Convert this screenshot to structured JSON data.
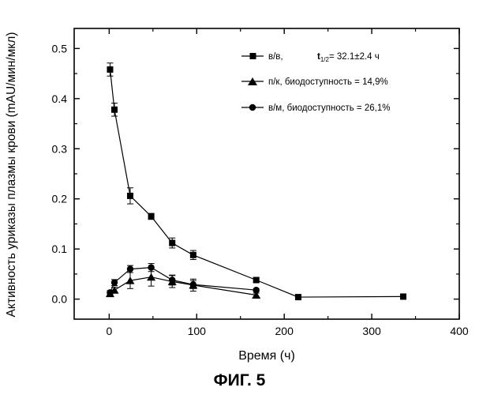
{
  "figure_caption": "ФИГ. 5",
  "chart_data": {
    "type": "scatter",
    "title": "",
    "xlabel": "Время (ч)",
    "ylabel": "Активность уриказы плазмы крови (mAU/мин/мкл)",
    "xlim": [
      -40,
      400
    ],
    "ylim": [
      -0.04,
      0.54
    ],
    "xticks": [
      0,
      100,
      200,
      300,
      400
    ],
    "yticks": [
      0.0,
      0.1,
      0.2,
      0.3,
      0.4,
      0.5
    ],
    "xtick_labels": [
      "0",
      "100",
      "200",
      "300",
      "400"
    ],
    "ytick_labels": [
      "0.0",
      "0.1",
      "0.2",
      "0.3",
      "0.4",
      "0.5"
    ],
    "grid": false,
    "legend_position": "top-right",
    "series": [
      {
        "name": "в/в",
        "legend_label": "в/в,",
        "legend_formula": "t1/2= 32.1±2.4 ч",
        "legend_t": "t",
        "legend_sub": "1/2",
        "legend_value": "= 32.1±2.4  ч",
        "marker": "square",
        "x": [
          1,
          6,
          24,
          48,
          72,
          96,
          168,
          216,
          336
        ],
        "y": [
          0.458,
          0.378,
          0.206,
          0.165,
          0.112,
          0.088,
          0.038,
          0.004,
          0.005
        ],
        "err": [
          0.013,
          0.013,
          0.016,
          0.006,
          0.01,
          0.009,
          0.004,
          0.002,
          0.002
        ]
      },
      {
        "name": "п/к",
        "legend_label": "п/к, биодоступность = 14,9%",
        "marker": "triangle",
        "x": [
          1,
          6,
          24,
          48,
          72,
          96,
          168
        ],
        "y": [
          0.011,
          0.018,
          0.037,
          0.044,
          0.035,
          0.028,
          0.008
        ],
        "err": [
          0.004,
          0.006,
          0.016,
          0.018,
          0.012,
          0.012,
          0.004
        ]
      },
      {
        "name": "в/м",
        "legend_label": "в/м, биодоступность = 26,1%",
        "marker": "circle",
        "x": [
          1,
          6,
          24,
          48,
          72,
          96,
          168
        ],
        "y": [
          0.013,
          0.033,
          0.06,
          0.063,
          0.038,
          0.029,
          0.018
        ],
        "err": [
          0.004,
          0.006,
          0.007,
          0.008,
          0.01,
          0.008,
          0.003
        ]
      }
    ]
  }
}
